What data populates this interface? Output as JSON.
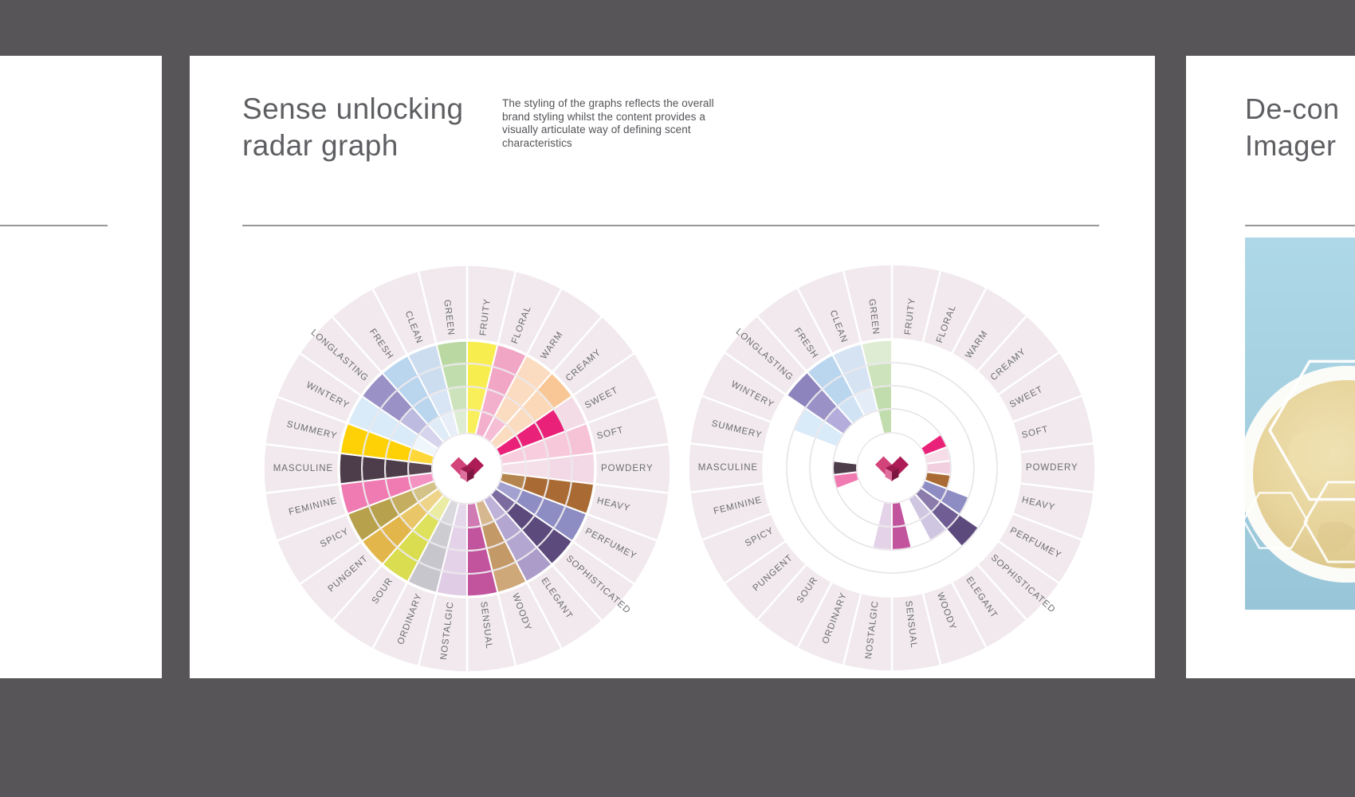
{
  "background_color": "#575558",
  "slides": {
    "left_partial": {},
    "main": {
      "title_line1": "Sense unlocking",
      "title_line2": "radar graph",
      "description": "The styling of the graphs reflects the overall\nbrand styling whilst the content provides a\nvisually articulate way of defining scent\ncharacteristics"
    },
    "right_partial": {
      "title_line1": "De-con",
      "title_line2": "Imager"
    }
  },
  "logo": {
    "left_lobe": "#d2437a",
    "right_lobe": "#ae1c57",
    "cube_top": "#9c1b4e",
    "cube_left": "#df6f9e",
    "cube_right": "#7c1540"
  },
  "chart_data": [
    {
      "type": "polar-cell-wheel",
      "position": "left",
      "rings": 4,
      "label_zone_color": "#f1e9ed",
      "label_text_color": "#6b6c6f",
      "categories": [
        "FRUITY",
        "FLORAL",
        "WARM",
        "CREAMY",
        "SWEET",
        "SOFT",
        "POWDERY",
        "HEAVY",
        "PERFUMEY",
        "SOPHISTICATED",
        "ELEGANT",
        "WOODY",
        "SENSUAL",
        "NOSTALGIC",
        "ORDINARY",
        "SOUR",
        "PUNGENT",
        "SPICY",
        "FEMININE",
        "MASCULINE",
        "SUMMERY",
        "WINTERY",
        "LONGLASTING",
        "FRESH",
        "CLEAN",
        "GREEN"
      ],
      "cells": [
        [
          "#f9ef5b",
          "#f9ef5b",
          "#f8ed4e",
          "#f8ed4e"
        ],
        [
          "#f3b0cd",
          "#f3b0cd",
          "#f2a6c6",
          "#f2a6c6"
        ],
        [
          "#f6bed4",
          "#fbdcc1",
          "#fbdcc1",
          "#fbdcc1"
        ],
        [
          "#fbdcc1",
          "#fbdcc1",
          "#fbd8b8",
          "#f9c795"
        ],
        [
          "#ea2178",
          "#ea2178",
          "#ea2178",
          "#f3dce6"
        ],
        [
          "#f8cede",
          "#f8cede",
          "#f7c8da",
          "#f6c2d6"
        ],
        [
          "#f5dfe9",
          "#f5dfe9",
          "#f3d8e5",
          "#f3d8e5"
        ],
        [
          "#b5854f",
          "#a96b33",
          "#a96b33",
          "#a96b33"
        ],
        [
          "#a2a1cf",
          "#8d8cc3",
          "#8d8cc3",
          "#8d8cc3"
        ],
        [
          "#7b6b9f",
          "#5c4a7d",
          "#5c4a7d",
          "#5c4a7d"
        ],
        [
          "#beb2d8",
          "#b3a6d1",
          "#b3a6d1",
          "#ab9cca"
        ],
        [
          "#d7b78f",
          "#c49968",
          "#c49968",
          "#cfa87a"
        ],
        [
          "#cf7ab3",
          "#c2549e",
          "#c2549e",
          "#c2549e"
        ],
        [
          "#e6d8eb",
          "#e3d2e8",
          "#e3d2e8",
          "#e0cde5"
        ],
        [
          "#d9d8dc",
          "#cdccd1",
          "#c8c6cd",
          "#c8c6cd"
        ],
        [
          "#eaeca3",
          "#dde15c",
          "#d9dd4f",
          "#d9dd4f"
        ],
        [
          "#eed489",
          "#e9c667",
          "#e3b64c",
          "#e3b64c"
        ],
        [
          "#d3c388",
          "#c5ae60",
          "#b8a14c",
          "#b8a14c"
        ],
        [
          "#f492c2",
          "#f07ab2",
          "#f07ab2",
          "#f07ab2"
        ],
        [
          "#5b4754",
          "#4d3c49",
          "#4d3c49",
          "#4d3c49"
        ],
        [
          "#fed83a",
          "#fdd106",
          "#fdd106",
          "#fdd106"
        ],
        [
          "#eff6fc",
          "#d9eaf8",
          "#d9eaf8",
          "#d9eaf8"
        ],
        [
          "#d5d4ec",
          "#bdbbdf",
          "#9a92c6",
          "#9a92c6"
        ],
        [
          "#dfebf7",
          "#bad5ee",
          "#bad5ee",
          "#bad5ee"
        ],
        [
          "#e7eef8",
          "#d7e5f4",
          "#cdddf0",
          "#cdddf0"
        ],
        [
          "#deecd4",
          "#cce3bb",
          "#c1ddad",
          "#b9d8a2"
        ]
      ]
    },
    {
      "type": "polar-cell-wheel",
      "position": "right",
      "rings": 4,
      "label_zone_color": "#f1e9ed",
      "label_text_color": "#6b6c6f",
      "categories": [
        "FRUITY",
        "FLORAL",
        "WARM",
        "CREAMY",
        "SWEET",
        "SOFT",
        "POWDERY",
        "HEAVY",
        "PERFUMEY",
        "SOPHISTICATED",
        "ELEGANT",
        "WOODY",
        "SENSUAL",
        "NOSTALGIC",
        "ORDINARY",
        "SOUR",
        "PUNGENT",
        "SPICY",
        "FEMININE",
        "MASCULINE",
        "SUMMERY",
        "WINTERY",
        "LONGLASTING",
        "FRESH",
        "CLEAN",
        "GREEN"
      ],
      "cells": [
        [
          null,
          null,
          null,
          null
        ],
        [
          null,
          null,
          null,
          null
        ],
        [
          null,
          null,
          null,
          null
        ],
        [
          null,
          null,
          null,
          null
        ],
        [
          "#ea2178",
          null,
          null,
          null
        ],
        [
          "#f7dde8",
          null,
          null,
          null
        ],
        [
          "#f2cfdf",
          null,
          null,
          null
        ],
        [
          "#a96b33",
          null,
          null,
          null
        ],
        [
          "#8d8cc3",
          "#8d8cc3",
          null,
          null
        ],
        [
          "#8a7bab",
          "#6f5d94",
          "#5c4a7d",
          null
        ],
        [
          "#cfc6e2",
          "#cfc6e2",
          null,
          null
        ],
        [
          null,
          null,
          null,
          null
        ],
        [
          "#c2549e",
          "#c2549e",
          null,
          null
        ],
        [
          "#e3d2e8",
          "#e3d2e8",
          null,
          null
        ],
        [
          null,
          null,
          null,
          null
        ],
        [
          null,
          null,
          null,
          null
        ],
        [
          null,
          null,
          null,
          null
        ],
        [
          null,
          null,
          null,
          null
        ],
        [
          "#f07ab2",
          null,
          null,
          null
        ],
        [
          "#4d3c49",
          null,
          null,
          null
        ],
        [
          null,
          null,
          null,
          null
        ],
        [
          null,
          "#d9eaf8",
          "#d9eaf8",
          null
        ],
        [
          null,
          "#b4addb",
          "#9a92c6",
          "#8d84bd"
        ],
        [
          null,
          "#d0e3f4",
          "#bad5ee",
          "#bad5ee"
        ],
        [
          null,
          "#e3ecf7",
          "#d5e3f3",
          "#d5e3f3"
        ],
        [
          "#c1ddad",
          "#c1ddad",
          "#cce3bb",
          "#deecd4"
        ]
      ]
    }
  ]
}
